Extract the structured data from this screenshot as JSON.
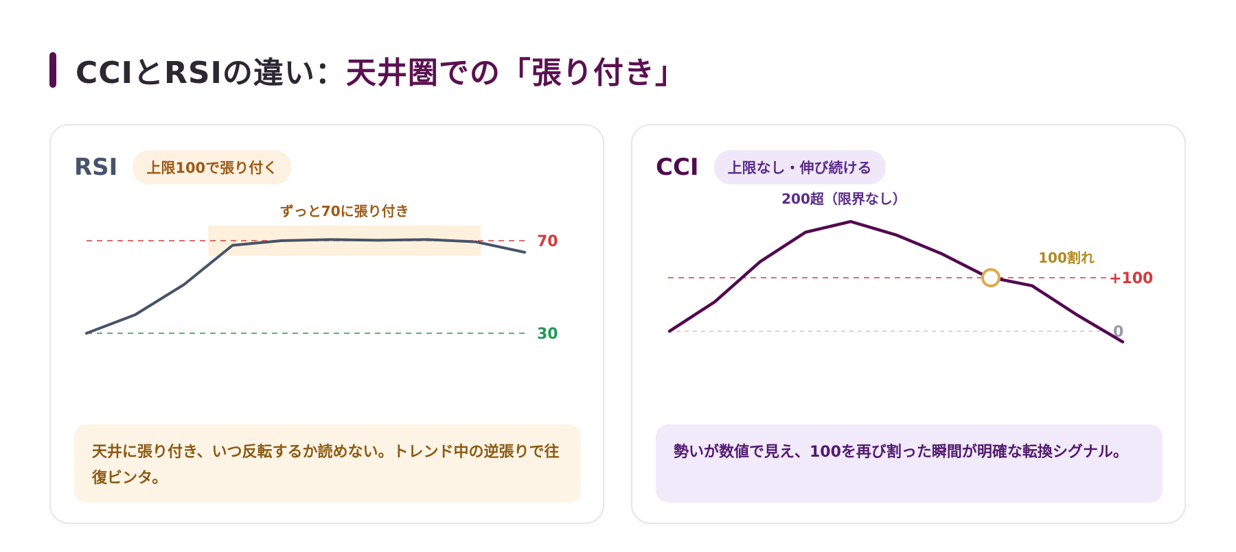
{
  "title": {
    "main": "CCIとRSIの違い：",
    "accent": "天井圏での「張り付き」"
  },
  "colors": {
    "brand": "#55104f",
    "rsi_line": "#465469",
    "cci_line": "#520a4f",
    "overbought": "#d63a3a",
    "oversold": "#1f9a55",
    "zero": "#9a9aa6",
    "highlight_fill": "#fdf0dc",
    "marker": "#e0a84a"
  },
  "rsi_card": {
    "name": "RSI",
    "pill": "上限100で張り付く",
    "note": "天井に張り付き、いつ反転するか読めない。トレンド中の逆張りで往復ビンタ。"
  },
  "cci_card": {
    "name": "CCI",
    "pill": "上限なし・伸び続ける",
    "note": "勢いが数値で見え、100を再び割った瞬間が明確な転換シグナル。"
  },
  "chart_data": [
    {
      "type": "line",
      "name": "RSI",
      "x": [
        0,
        1,
        2,
        3,
        4,
        5,
        6,
        7,
        8,
        9
      ],
      "y": [
        30,
        38,
        51,
        68,
        70,
        70.5,
        70.2,
        70.5,
        69.5,
        65
      ],
      "ylim": [
        0,
        100
      ],
      "reference_lines": [
        {
          "label": "70",
          "value": 70,
          "color": "#d63a3a"
        },
        {
          "label": "30",
          "value": 30,
          "color": "#1f9a55"
        }
      ],
      "highlight": {
        "label": "ずっと70に張り付き",
        "x_from": 2.5,
        "x_to": 8.1
      }
    },
    {
      "type": "line",
      "name": "CCI",
      "x": [
        0,
        1,
        2,
        3,
        4,
        5,
        6,
        7,
        8,
        9,
        10
      ],
      "y": [
        0,
        55,
        130,
        185,
        205,
        180,
        145,
        102,
        85,
        30,
        -20
      ],
      "ylim": [
        -50,
        250
      ],
      "reference_lines": [
        {
          "label": "+100",
          "value": 100,
          "color": "#d63a3a"
        },
        {
          "label": "0",
          "value": 0,
          "color": "#9a9aa6"
        }
      ],
      "annotations": [
        {
          "label": "200超（限界なし）",
          "x": 4,
          "y": 205
        },
        {
          "label": "100割れ",
          "x": 7,
          "y": 100,
          "marker": "circle"
        }
      ]
    }
  ]
}
